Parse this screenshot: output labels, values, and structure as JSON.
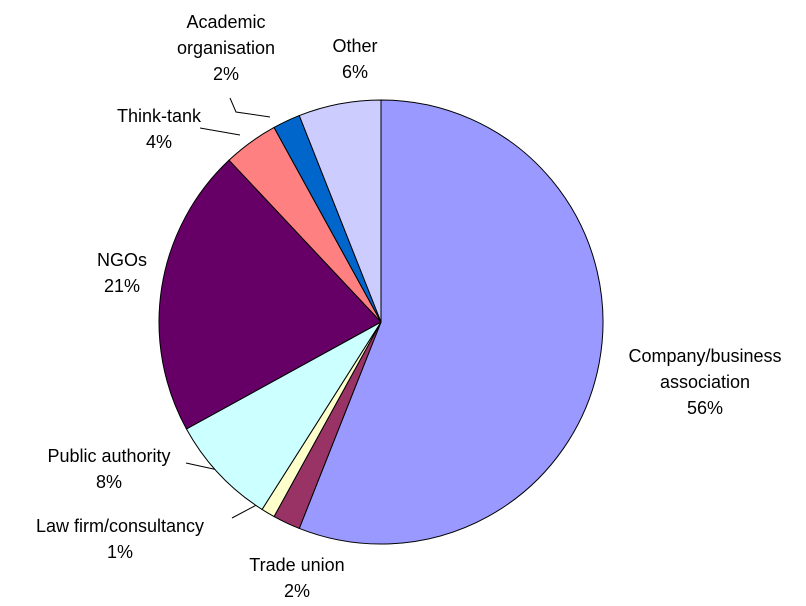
{
  "chart_data": {
    "type": "pie",
    "categories": [
      "Company/business association",
      "Trade union",
      "Law firm/consultancy",
      "Public authority",
      "NGOs",
      "Think-tank",
      "Academic organisation",
      "Other"
    ],
    "values": [
      56,
      2,
      1,
      8,
      21,
      4,
      2,
      6
    ],
    "value_labels": [
      "56%",
      "2%",
      "1%",
      "8%",
      "21%",
      "4%",
      "2%",
      "6%"
    ],
    "colors": [
      "#9999ff",
      "#993366",
      "#ffffcc",
      "#ccffff",
      "#660066",
      "#ff8080",
      "#0066cc",
      "#ccccff"
    ]
  }
}
